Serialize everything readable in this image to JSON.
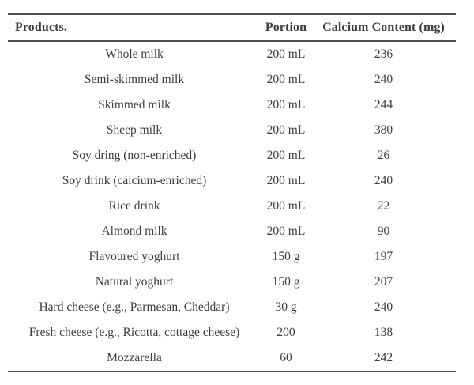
{
  "colors": {
    "background": "#ffffff",
    "text": "#3d3d3d",
    "rule": "#4f4f4f"
  },
  "table": {
    "columns": {
      "products": "Products.",
      "portion": "Portion",
      "calcium": "Calcium Content (mg)"
    },
    "rows": [
      [
        "Whole milk",
        "200 mL",
        "236"
      ],
      [
        "Semi-skimmed milk",
        "200 mL",
        "240"
      ],
      [
        "Skimmed milk",
        "200 mL",
        "244"
      ],
      [
        "Sheep milk",
        "200 mL",
        "380"
      ],
      [
        "Soy dring (non-enriched)",
        "200 mL",
        "26"
      ],
      [
        "Soy drink (calcium-enriched)",
        "200 mL",
        "240"
      ],
      [
        "Rice drink",
        "200 mL",
        "22"
      ],
      [
        "Almond milk",
        "200 mL",
        "90"
      ],
      [
        "Flavoured yoghurt",
        "150 g",
        "197"
      ],
      [
        "Natural yoghurt",
        "150 g",
        "207"
      ],
      [
        "Hard cheese (e.g., Parmesan, Cheddar)",
        "30 g",
        "240"
      ],
      [
        "Fresh cheese (e.g., Ricotta, cottage cheese)",
        "200",
        "138"
      ],
      [
        "Mozzarella",
        "60",
        "242"
      ]
    ]
  }
}
